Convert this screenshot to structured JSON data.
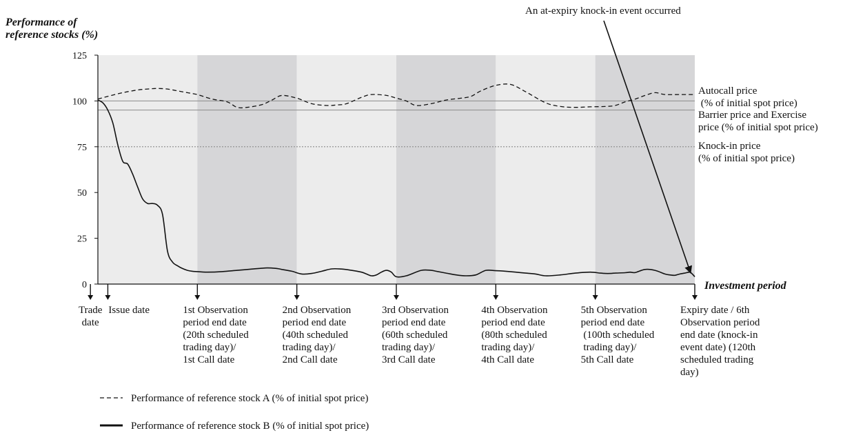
{
  "chart_data": {
    "type": "line",
    "ylabel_lines": [
      "Performance of",
      "reference stocks (%)"
    ],
    "xlabel": "Investment period",
    "ylim": [
      0,
      125
    ],
    "yticks": [
      0,
      25,
      50,
      75,
      100,
      125
    ],
    "xlim": [
      0,
      120
    ],
    "annotation": "An at-expiry knock-in event occurred",
    "reference_lines": [
      {
        "name": "autocall",
        "value": 100,
        "style": "solid",
        "color": "#8a8a8a",
        "label_lines": [
          "Autocall price",
          " (% of initial spot price)"
        ]
      },
      {
        "name": "barrier",
        "value": 95,
        "style": "solid",
        "color": "#8a8a8a",
        "label_lines": [
          "Barrier price and Exercise",
          "price (% of initial spot price)"
        ]
      },
      {
        "name": "knockin",
        "value": 75,
        "style": "dotted",
        "color": "#8a8a8a",
        "label_lines": [
          "Knock-in price",
          "(% of initial spot price)"
        ]
      }
    ],
    "bands": [
      {
        "from": 0,
        "to": 20,
        "shade": "light"
      },
      {
        "from": 20,
        "to": 40,
        "shade": "dark"
      },
      {
        "from": 40,
        "to": 60,
        "shade": "light"
      },
      {
        "from": 60,
        "to": 80,
        "shade": "dark"
      },
      {
        "from": 80,
        "to": 100,
        "shade": "light"
      },
      {
        "from": 100,
        "to": 120,
        "shade": "dark"
      }
    ],
    "band_colors": {
      "light": "#ececec",
      "dark": "#d6d6d8"
    },
    "x_markers": [
      {
        "x": -1.5,
        "lines": [
          "Trade",
          "date"
        ],
        "align": "middle"
      },
      {
        "x": 2,
        "lines": [
          "Issue date"
        ],
        "align": "start"
      },
      {
        "x": 20,
        "lines": [
          "1st Observation",
          "period end date",
          "(20th scheduled",
          "trading day)/",
          "1st Call date"
        ],
        "align": "start"
      },
      {
        "x": 40,
        "lines": [
          "2nd Observation",
          "period end date",
          "(40th scheduled",
          "trading day)/",
          "2nd Call date"
        ],
        "align": "start"
      },
      {
        "x": 60,
        "lines": [
          "3rd Observation",
          "period end date",
          "(60th scheduled",
          "trading day)/",
          "3rd Call date"
        ],
        "align": "start"
      },
      {
        "x": 80,
        "lines": [
          "4th Observation",
          "period end date",
          "(80th scheduled",
          "trading day)/",
          "4th Call date"
        ],
        "align": "start"
      },
      {
        "x": 100,
        "lines": [
          "5th Observation",
          "period end date",
          " (100th scheduled",
          " trading day)/",
          "5th Call date"
        ],
        "align": "start"
      },
      {
        "x": 120,
        "lines": [
          "Expiry date / 6th",
          "Observation period",
          "end date (knock-in",
          "event date) (120th",
          "scheduled trading",
          "day)"
        ],
        "align": "start"
      }
    ],
    "series": [
      {
        "name": "Performance of reference stock A (% of initial spot price)",
        "style": "dashed",
        "x": [
          0,
          2,
          5,
          8,
          10,
          12,
          14,
          16,
          18,
          20,
          23,
          26,
          28,
          30,
          33,
          35,
          37,
          40,
          43,
          46,
          48,
          50,
          53,
          55,
          58,
          60,
          62,
          64,
          67,
          70,
          73,
          75,
          77,
          80,
          83,
          86,
          90,
          93,
          96,
          99,
          102,
          104,
          106,
          108,
          110,
          112,
          114,
          117,
          120
        ],
        "values": [
          101,
          102.5,
          104.5,
          106,
          106.5,
          106.8,
          106.5,
          105.5,
          104.5,
          103.5,
          101,
          99.5,
          96.5,
          96.5,
          98,
          100.5,
          103,
          101.5,
          98.5,
          97.5,
          97.8,
          98.5,
          102,
          103.5,
          103,
          101.5,
          100,
          97.5,
          98.5,
          100.5,
          101.5,
          102.5,
          105.5,
          108.5,
          109,
          105,
          99,
          97,
          96.5,
          96.8,
          97,
          97.5,
          99.5,
          101,
          103,
          104.5,
          103.5,
          103.5,
          103.5
        ]
      },
      {
        "name": "Performance of reference stock B (% of initial spot price)",
        "style": "solid",
        "x": [
          0,
          1,
          2,
          3,
          4,
          5,
          6,
          7,
          8,
          9,
          10,
          11,
          12,
          13,
          14,
          15,
          16,
          17,
          18,
          19,
          20,
          22,
          25,
          28,
          31,
          34,
          36,
          37,
          39,
          41,
          43,
          45,
          47,
          49,
          51,
          53,
          54,
          55,
          56,
          57,
          58,
          59,
          60,
          62,
          65,
          67,
          68,
          70,
          72,
          74,
          76,
          78,
          80,
          82,
          84,
          86,
          88,
          90,
          93,
          96,
          99,
          101,
          102,
          103,
          104,
          106,
          107,
          108,
          110,
          112,
          114,
          115,
          116,
          117,
          118,
          119,
          119.5,
          120
        ],
        "values": [
          100.5,
          99,
          95,
          88,
          76,
          67,
          65.5,
          60,
          53,
          46.5,
          44,
          44,
          43,
          38,
          18,
          12,
          10,
          8.5,
          7.5,
          7,
          6.8,
          6.5,
          6.8,
          7.5,
          8.2,
          8.8,
          8.5,
          8,
          7,
          5.5,
          5.8,
          7,
          8.3,
          8.2,
          7.5,
          6.5,
          5.5,
          4.5,
          5,
          6.5,
          7.5,
          6.5,
          4,
          4.5,
          7.5,
          7.5,
          7,
          6,
          5,
          4.5,
          5,
          7.5,
          7.3,
          7,
          6.5,
          6,
          5.5,
          4.5,
          5,
          6,
          6.5,
          6,
          5.8,
          5.8,
          6,
          6.2,
          6.5,
          6.3,
          8,
          7.5,
          5.5,
          5,
          4.8,
          5.5,
          6,
          6.5,
          5.5,
          4
        ]
      }
    ]
  }
}
